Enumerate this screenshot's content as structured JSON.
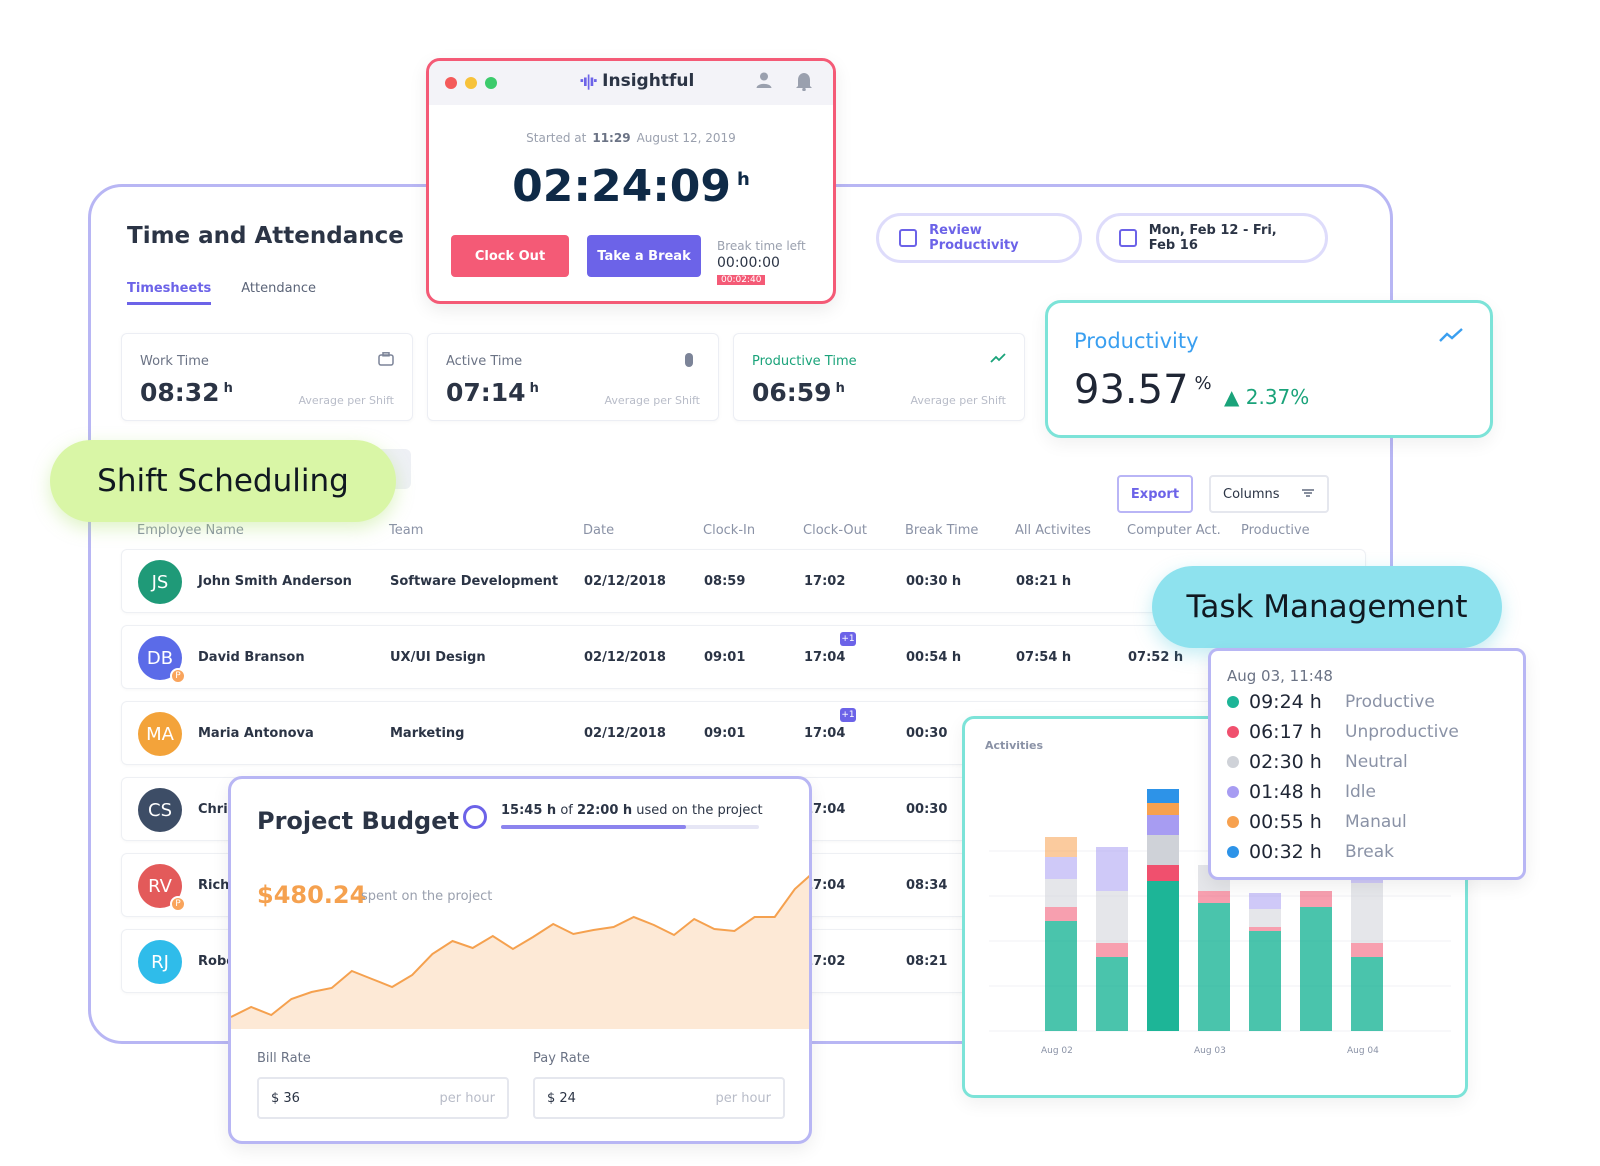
{
  "main": {
    "title": "Time and Attendance",
    "tabs": [
      "Timesheets",
      "Attendance"
    ],
    "review_button": "Review Productivity",
    "date_range": "Mon, Feb 12 - Fri, Feb 16",
    "stats": [
      {
        "label": "Work Time",
        "value": "08:32",
        "unit": "h",
        "sub": "Average per Shift"
      },
      {
        "label": "Active Time",
        "value": "07:14",
        "unit": "h",
        "sub": "Average per Shift"
      },
      {
        "label": "Productive Time",
        "value": "06:59",
        "unit": "h",
        "sub": "Average per Shift"
      }
    ],
    "export_label": "Export",
    "columns_label": "Columns",
    "columns_headers": [
      "Employee Name",
      "Team",
      "Date",
      "Clock-In",
      "Clock-Out",
      "Break Time",
      "All Activites",
      "Computer Act.",
      "Productive"
    ],
    "rows": [
      {
        "initials": "JS",
        "color": "#1f9a78",
        "name": "John Smith Anderson",
        "team": "Software Development",
        "date": "02/12/2018",
        "in": "08:59",
        "out": "17:02",
        "break": "00:30 h",
        "all": "08:21 h",
        "comp": "",
        "badge": ""
      },
      {
        "initials": "DB",
        "color": "#5b6be8",
        "name": "David Branson",
        "team": "UX/UI Design",
        "date": "02/12/2018",
        "in": "09:01",
        "out": "17:04",
        "break": "00:54 h",
        "all": "07:54 h",
        "comp": "07:52 h",
        "badge": "+1"
      },
      {
        "initials": "MA",
        "color": "#f3a33a",
        "name": "Maria Antonova",
        "team": "Marketing",
        "date": "02/12/2018",
        "in": "09:01",
        "out": "17:04",
        "break": "00:30",
        "all": "",
        "comp": "",
        "badge": "+1"
      },
      {
        "initials": "CS",
        "color": "#3d4d66",
        "name": "Chri",
        "team": "",
        "date": "",
        "in": "",
        "out": "17:04",
        "break": "00:30",
        "all": "",
        "comp": "",
        "badge": ""
      },
      {
        "initials": "RV",
        "color": "#e35a5a",
        "name": "Rich",
        "team": "",
        "date": "",
        "in": "",
        "out": "17:04",
        "break": "08:34",
        "all": "",
        "comp": "",
        "badge": ""
      },
      {
        "initials": "RJ",
        "color": "#2fbcea",
        "name": "Robe",
        "team": "",
        "date": "",
        "in": "",
        "out": "17:02",
        "break": "08:21",
        "all": "",
        "comp": "",
        "badge": ""
      }
    ],
    "avatar_badge": "P"
  },
  "timer": {
    "brand": "Insightful",
    "started_prefix": "Started at",
    "started_time": "11:29",
    "started_date": "August 12, 2019",
    "clock": "02:24:09",
    "clock_unit": "h",
    "clock_out": "Clock Out",
    "take_break": "Take a Break",
    "break_label": "Break time left",
    "break_value": "00:00:00",
    "break_over": "00:02:40"
  },
  "productivity": {
    "title": "Productivity",
    "value": "93.57",
    "unit": "%",
    "delta": "▲ 2.37%"
  },
  "pills": {
    "shift": "Shift Scheduling",
    "task": "Task Management"
  },
  "budget": {
    "title": "Project Budget",
    "used_hours": "15:45 h",
    "of_text": "of",
    "total_hours": "22:00 h",
    "used_suffix": "used on the project",
    "used_fraction": 0.716,
    "amount": "$480.24",
    "spent_text": "spent on the project",
    "bill_label": "Bill Rate",
    "bill_value": "$ 36",
    "pay_label": "Pay Rate",
    "pay_value": "$ 24",
    "unit": "per hour",
    "series": [
      12,
      22,
      14,
      30,
      37,
      41,
      58,
      50,
      42,
      54,
      75,
      88,
      81,
      93,
      80,
      92,
      105,
      95,
      99,
      102,
      112,
      104,
      94,
      110,
      100,
      98,
      112,
      112,
      140,
      158
    ]
  },
  "activities": {
    "title": "Activities",
    "x_labels": [
      "Aug 02",
      "Aug 03",
      "Aug 04"
    ],
    "legend_head": "Aug 03, 11:48",
    "legend": [
      {
        "time": "09:24 h",
        "name": "Productive",
        "color": "#1db597"
      },
      {
        "time": "06:17 h",
        "name": "Unproductive",
        "color": "#f0506e"
      },
      {
        "time": "02:30 h",
        "name": "Neutral",
        "color": "#cfd2d8"
      },
      {
        "time": "01:48 h",
        "name": "Idle",
        "color": "#a79cf2"
      },
      {
        "time": "00:55 h",
        "name": "Manaul",
        "color": "#f7a14f"
      },
      {
        "time": "00:32 h",
        "name": "Break",
        "color": "#2d93e8"
      }
    ],
    "bars": [
      {
        "productive": 110,
        "unproductive": 14,
        "neutral": 28,
        "idle": 22,
        "manual": 20,
        "break": 0,
        "faded": true
      },
      {
        "productive": 74,
        "unproductive": 14,
        "neutral": 52,
        "idle": 44,
        "manual": 0,
        "break": 0,
        "faded": true
      },
      {
        "productive": 150,
        "unproductive": 16,
        "neutral": 30,
        "idle": 20,
        "manual": 12,
        "break": 14,
        "faded": false
      },
      {
        "productive": 128,
        "unproductive": 12,
        "neutral": 26,
        "idle": 0,
        "manual": 0,
        "break": 0,
        "faded": true
      },
      {
        "productive": 100,
        "unproductive": 4,
        "neutral": 18,
        "idle": 16,
        "manual": 0,
        "break": 0,
        "faded": true
      },
      {
        "productive": 124,
        "unproductive": 16,
        "neutral": 0,
        "idle": 0,
        "manual": 0,
        "break": 0,
        "faded": true
      },
      {
        "productive": 74,
        "unproductive": 14,
        "neutral": 60,
        "idle": 10,
        "manual": 0,
        "break": 0,
        "faded": true
      }
    ]
  }
}
